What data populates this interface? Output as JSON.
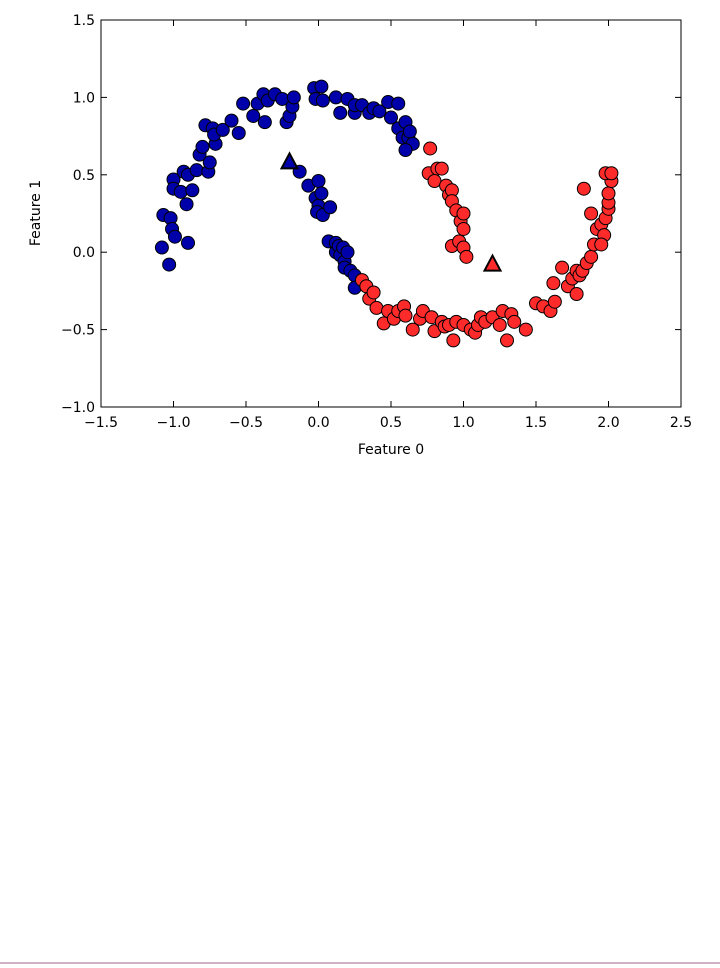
{
  "chart_data": {
    "type": "scatter",
    "xlabel": "Feature 0",
    "ylabel": "Feature 1",
    "xlim": [
      -1.5,
      2.5
    ],
    "ylim": [
      -1.0,
      1.5
    ],
    "xticks": [
      {
        "value": -1.5,
        "label": "−1.5"
      },
      {
        "value": -1.0,
        "label": "−1.0"
      },
      {
        "value": -0.5,
        "label": "−0.5"
      },
      {
        "value": 0,
        "label": "0.0"
      },
      0.5,
      {
        "value": 1.0,
        "label": "1.0"
      },
      1.5,
      {
        "value": 2.0,
        "label": "2.0"
      },
      2.5
    ],
    "yticks": [
      {
        "value": -1.0,
        "label": "−1.0"
      },
      {
        "value": -0.5,
        "label": "−0.5"
      },
      {
        "value": 0,
        "label": "0.0"
      },
      0.5,
      {
        "value": 1.0,
        "label": "1.0"
      },
      1.5
    ],
    "series": [
      {
        "color": "#0000aa",
        "marker": "circle",
        "x": [
          -1.07,
          -1.08,
          -1.03,
          -1.02,
          -1.01,
          -0.99,
          -1.0,
          -1.0,
          -0.95,
          -0.93,
          -0.91,
          -0.9,
          -0.9,
          -0.87,
          -0.84,
          -0.82,
          -0.8,
          -0.78,
          -0.76,
          -0.75,
          -0.73,
          -0.71,
          -0.72,
          -0.66,
          -0.6,
          -0.55,
          -0.52,
          -0.45,
          -0.42,
          -0.38,
          -0.35,
          -0.37,
          -0.3,
          -0.25,
          -0.22,
          -0.2,
          -0.18,
          -0.17,
          -0.03,
          -0.02,
          0.02,
          0.03,
          0.12,
          0.15,
          0.2,
          0.25,
          0.25,
          0.3,
          0.35,
          0.38,
          0.42,
          0.48,
          0.5,
          0.55,
          0.55,
          0.58,
          0.6,
          0.62,
          0.63,
          0.65,
          0.6,
          -0.13,
          -0.07,
          0.0,
          -0.02,
          0.0,
          0.02,
          -0.01,
          0.03,
          0.08,
          0.07,
          0.12,
          0.12,
          0.14,
          0.15,
          0.17,
          0.18,
          0.2,
          0.18,
          0.22,
          0.25,
          0.25
        ],
        "values": [
          0.24,
          0.03,
          -0.08,
          0.22,
          0.15,
          0.1,
          0.47,
          0.41,
          0.39,
          0.52,
          0.31,
          0.06,
          0.5,
          0.4,
          0.53,
          0.63,
          0.68,
          0.82,
          0.52,
          0.58,
          0.8,
          0.7,
          0.76,
          0.79,
          0.85,
          0.77,
          0.96,
          0.88,
          0.96,
          1.02,
          0.98,
          0.84,
          1.02,
          0.99,
          0.84,
          0.88,
          0.94,
          1.0,
          1.06,
          0.99,
          1.07,
          0.98,
          1.0,
          0.9,
          0.99,
          0.9,
          0.95,
          0.95,
          0.9,
          0.93,
          0.91,
          0.97,
          0.87,
          0.96,
          0.8,
          0.74,
          0.84,
          0.74,
          0.78,
          0.7,
          0.66,
          0.52,
          0.43,
          0.46,
          0.35,
          0.3,
          0.38,
          0.26,
          0.24,
          0.29,
          0.07,
          0.06,
          0.0,
          0.04,
          -0.02,
          0.03,
          -0.06,
          0.0,
          -0.1,
          -0.12,
          -0.15,
          -0.23
        ]
      },
      {
        "color": "#ff2a2a",
        "marker": "circle",
        "x": [
          0.3,
          0.33,
          0.35,
          0.38,
          0.4,
          0.45,
          0.48,
          0.52,
          0.55,
          0.59,
          0.6,
          0.65,
          0.7,
          0.72,
          0.78,
          0.8,
          0.85,
          0.87,
          0.9,
          0.93,
          0.95,
          1.0,
          1.05,
          1.08,
          1.1,
          1.12,
          1.15,
          1.2,
          1.25,
          1.27,
          1.3,
          1.33,
          1.35,
          1.43,
          1.5,
          1.55,
          1.6,
          1.62,
          1.63,
          1.68,
          1.72,
          1.75,
          1.78,
          1.78,
          1.8,
          1.82,
          1.85,
          1.88,
          1.9,
          1.92,
          1.88,
          1.95,
          1.97,
          1.98,
          2.0,
          2.0,
          2.0,
          2.02,
          1.98,
          2.02,
          1.83,
          1.95,
          0.77,
          0.76,
          0.82,
          0.8,
          0.85,
          0.88,
          0.9,
          0.92,
          0.92,
          0.95,
          0.98,
          1.0,
          0.92,
          0.97,
          1.0,
          1.02,
          1.0
        ],
        "values": [
          -0.18,
          -0.22,
          -0.3,
          -0.26,
          -0.36,
          -0.46,
          -0.38,
          -0.43,
          -0.38,
          -0.35,
          -0.41,
          -0.5,
          -0.43,
          -0.38,
          -0.42,
          -0.51,
          -0.45,
          -0.48,
          -0.47,
          -0.57,
          -0.45,
          -0.47,
          -0.5,
          -0.52,
          -0.47,
          -0.42,
          -0.45,
          -0.42,
          -0.47,
          -0.38,
          -0.57,
          -0.4,
          -0.45,
          -0.5,
          -0.33,
          -0.35,
          -0.38,
          -0.2,
          -0.32,
          -0.1,
          -0.22,
          -0.17,
          -0.12,
          -0.27,
          -0.15,
          -0.12,
          -0.07,
          -0.03,
          0.05,
          0.15,
          0.25,
          0.18,
          0.11,
          0.22,
          0.28,
          0.32,
          0.38,
          0.46,
          0.51,
          0.51,
          0.41,
          0.05,
          0.67,
          0.51,
          0.54,
          0.46,
          0.54,
          0.43,
          0.37,
          0.4,
          0.33,
          0.27,
          0.2,
          0.25,
          0.04,
          0.07,
          0.03,
          -0.03,
          0.15
        ]
      },
      {
        "color": "#0000aa",
        "marker": "triangle",
        "x": [
          -0.2
        ],
        "values": [
          0.58
        ]
      },
      {
        "color": "#ff2a2a",
        "marker": "triangle",
        "x": [
          1.2
        ],
        "values": [
          -0.08
        ]
      }
    ]
  }
}
